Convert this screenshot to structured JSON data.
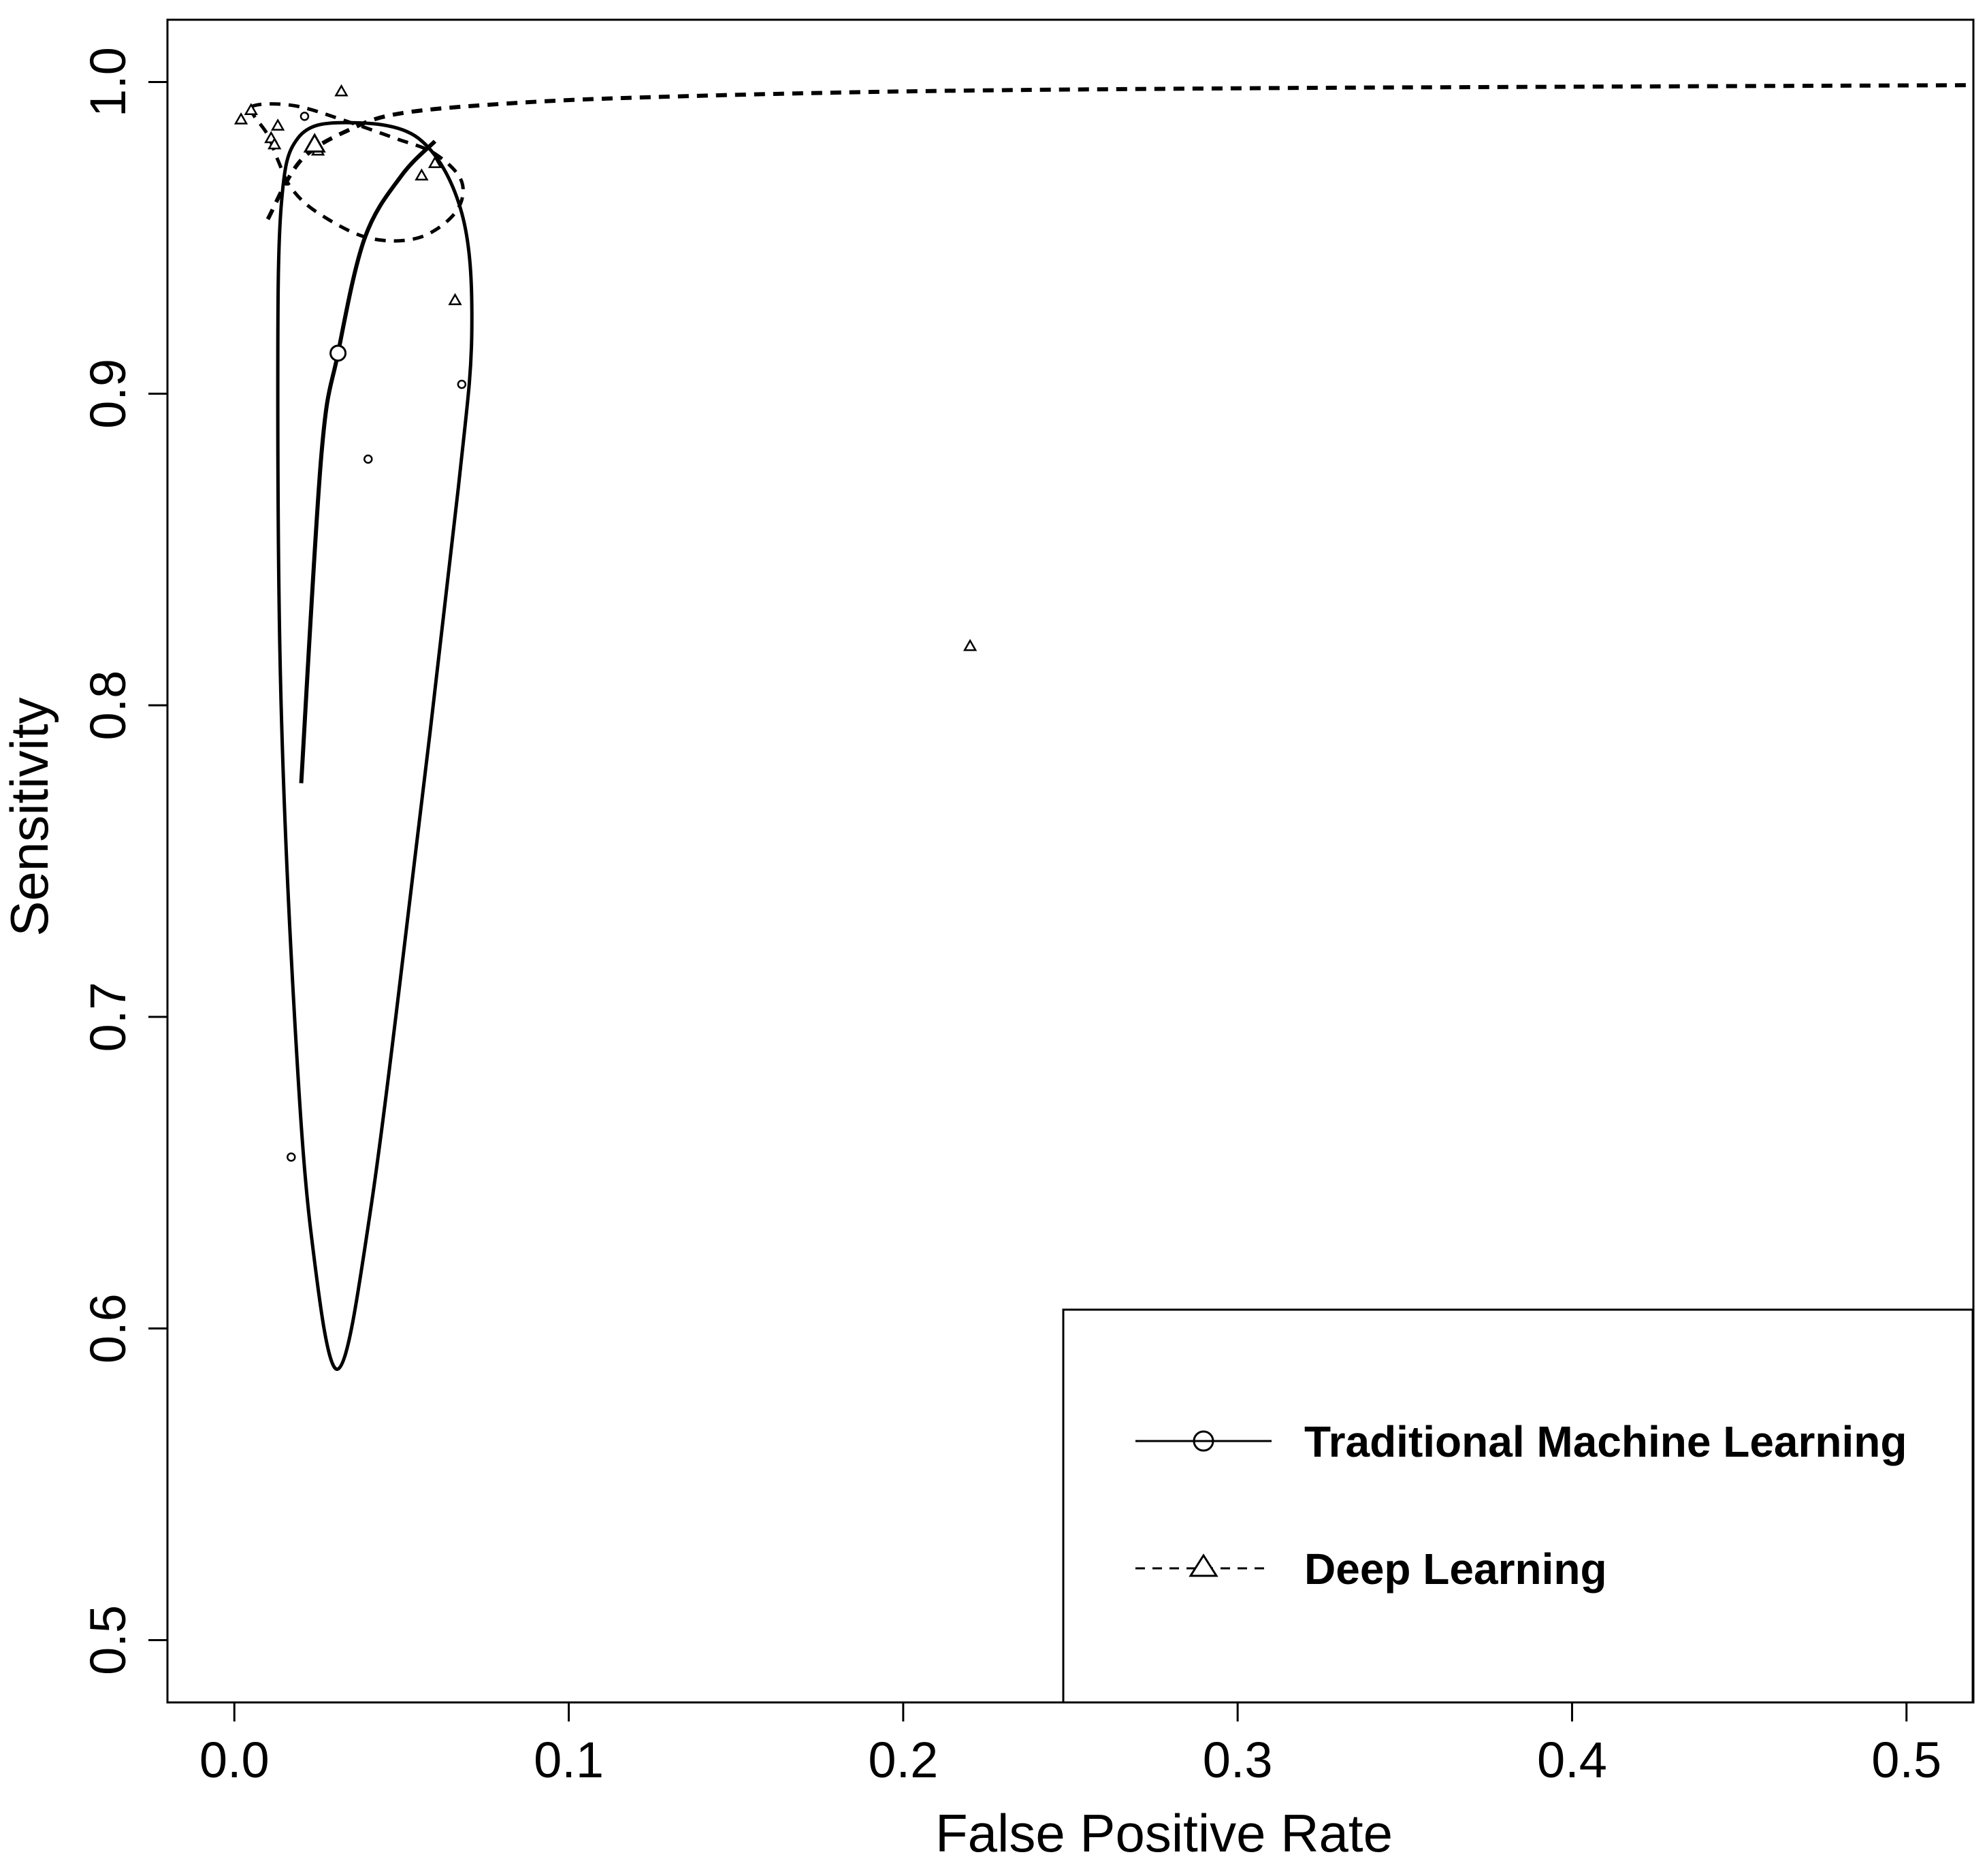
{
  "chart_data": {
    "type": "scatter",
    "title": "",
    "xlabel": "False Positive Rate",
    "ylabel": "Sensitivity",
    "xlim": [
      -0.02,
      0.52
    ],
    "ylim": [
      0.48,
      1.02
    ],
    "xticks": [
      "0.0",
      "0.1",
      "0.2",
      "0.3",
      "0.4",
      "0.5"
    ],
    "yticks": [
      "0.5",
      "0.6",
      "0.7",
      "0.8",
      "0.9",
      "1.0"
    ],
    "grid": false,
    "legend_position": "bottom-right",
    "series": [
      {
        "name": "Traditional Machine Learning",
        "line_style": "solid",
        "marker": "circle",
        "summary_point": {
          "x": 0.031,
          "y": 0.913
        },
        "study_points": [
          {
            "x": 0.021,
            "y": 0.989
          },
          {
            "x": 0.04,
            "y": 0.879
          },
          {
            "x": 0.068,
            "y": 0.903
          },
          {
            "x": 0.017,
            "y": 0.655
          }
        ],
        "sroc_curve": [
          {
            "x": 0.02,
            "y": 0.775
          },
          {
            "x": 0.026,
            "y": 0.88
          },
          {
            "x": 0.031,
            "y": 0.913
          },
          {
            "x": 0.039,
            "y": 0.95
          },
          {
            "x": 0.05,
            "y": 0.97
          },
          {
            "x": 0.06,
            "y": 0.981
          }
        ],
        "confidence_region": [
          {
            "x": 0.031,
            "y": 0.587
          },
          {
            "x": 0.041,
            "y": 0.64
          },
          {
            "x": 0.055,
            "y": 0.76
          },
          {
            "x": 0.067,
            "y": 0.87
          },
          {
            "x": 0.071,
            "y": 0.92
          },
          {
            "x": 0.068,
            "y": 0.958
          },
          {
            "x": 0.055,
            "y": 0.982
          },
          {
            "x": 0.033,
            "y": 0.987
          },
          {
            "x": 0.019,
            "y": 0.982
          },
          {
            "x": 0.014,
            "y": 0.96
          },
          {
            "x": 0.013,
            "y": 0.9
          },
          {
            "x": 0.014,
            "y": 0.8
          },
          {
            "x": 0.018,
            "y": 0.7
          },
          {
            "x": 0.023,
            "y": 0.63
          }
        ]
      },
      {
        "name": "Deep Learning",
        "line_style": "dashed",
        "marker": "triangle",
        "summary_point": {
          "x": 0.024,
          "y": 0.98
        },
        "study_points": [
          {
            "x": 0.002,
            "y": 0.988
          },
          {
            "x": 0.005,
            "y": 0.991
          },
          {
            "x": 0.011,
            "y": 0.982
          },
          {
            "x": 0.012,
            "y": 0.98
          },
          {
            "x": 0.013,
            "y": 0.986
          },
          {
            "x": 0.032,
            "y": 0.997
          },
          {
            "x": 0.025,
            "y": 0.978
          },
          {
            "x": 0.056,
            "y": 0.97
          },
          {
            "x": 0.06,
            "y": 0.974
          },
          {
            "x": 0.066,
            "y": 0.93
          },
          {
            "x": 0.22,
            "y": 0.819
          }
        ],
        "sroc_curve": [
          {
            "x": 0.01,
            "y": 0.956
          },
          {
            "x": 0.02,
            "y": 0.975
          },
          {
            "x": 0.035,
            "y": 0.985
          },
          {
            "x": 0.05,
            "y": 0.99
          },
          {
            "x": 0.08,
            "y": 0.993
          },
          {
            "x": 0.12,
            "y": 0.995
          },
          {
            "x": 0.2,
            "y": 0.997
          },
          {
            "x": 0.3,
            "y": 0.998
          },
          {
            "x": 0.4,
            "y": 0.9985
          },
          {
            "x": 0.52,
            "y": 0.999
          }
        ],
        "confidence_region": [
          {
            "x": 0.005,
            "y": 0.992
          },
          {
            "x": 0.011,
            "y": 0.993
          },
          {
            "x": 0.02,
            "y": 0.992
          },
          {
            "x": 0.032,
            "y": 0.988
          },
          {
            "x": 0.048,
            "y": 0.982
          },
          {
            "x": 0.06,
            "y": 0.977
          },
          {
            "x": 0.068,
            "y": 0.968
          },
          {
            "x": 0.066,
            "y": 0.958
          },
          {
            "x": 0.055,
            "y": 0.95
          },
          {
            "x": 0.04,
            "y": 0.95
          },
          {
            "x": 0.025,
            "y": 0.958
          },
          {
            "x": 0.017,
            "y": 0.966
          },
          {
            "x": 0.013,
            "y": 0.975
          },
          {
            "x": 0.01,
            "y": 0.983
          },
          {
            "x": 0.006,
            "y": 0.989
          }
        ]
      }
    ]
  }
}
